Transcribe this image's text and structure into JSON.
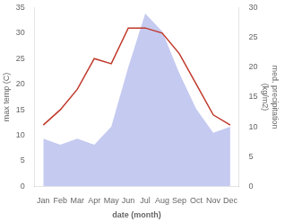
{
  "chart_data": {
    "type": "line",
    "categories": [
      "Jan",
      "Feb",
      "Mar",
      "Apr",
      "May",
      "Jun",
      "Jul",
      "Aug",
      "Sep",
      "Oct",
      "Nov",
      "Dec"
    ],
    "series": [
      {
        "type": "area",
        "color": "#c5caf0",
        "axis": "y2",
        "values": [
          8,
          7,
          8,
          7,
          10,
          20,
          29,
          26,
          19,
          13,
          9,
          10
        ]
      },
      {
        "type": "line",
        "color": "#c0392b",
        "values": [
          12,
          15,
          19,
          25,
          24,
          31,
          31,
          30,
          26,
          20,
          14,
          12
        ]
      }
    ],
    "xlabel": "date (month)",
    "ylabel": "max temp (C)",
    "y2label": "med. precipitation\n(kg/m2)",
    "ylim": [
      0,
      35
    ],
    "yticks": [
      0,
      5,
      10,
      15,
      20,
      25,
      30,
      35
    ],
    "y2lim": [
      0,
      30
    ],
    "y2ticks": [
      0,
      5,
      10,
      15,
      20,
      25,
      30
    ],
    "grid": false
  }
}
